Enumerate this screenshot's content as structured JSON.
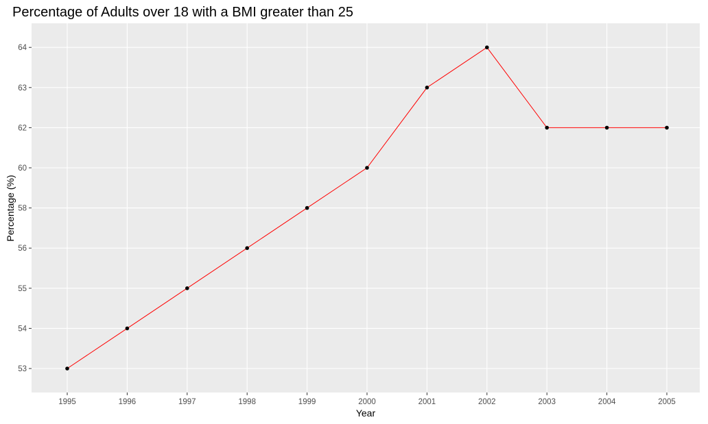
{
  "chart_data": {
    "type": "line",
    "title": "Percentage of Adults over 18 with a BMI greater than 25",
    "xlabel": "Year",
    "ylabel": "Percentage (%)",
    "categories": [
      "1995",
      "1996",
      "1997",
      "1998",
      "1999",
      "2000",
      "2001",
      "2002",
      "2003",
      "2004",
      "2005"
    ],
    "y_tick_labels": [
      "53",
      "54",
      "55",
      "56",
      "58",
      "60",
      "62",
      "63",
      "64"
    ],
    "series": [
      {
        "values": [
          "53",
          "54",
          "55",
          "56",
          "58",
          "60",
          "63",
          "64",
          "62",
          "62",
          "62"
        ]
      }
    ],
    "y_axis_note": "y axis is categorical (discrete, equally spaced levels)",
    "grid": true,
    "legend": "none",
    "colors": {
      "panel_background": "#ebebeb",
      "gridline": "#ffffff",
      "line": "#ff0000",
      "point": "#000000",
      "tick_label": "#4d4d4d",
      "tick_mark": "#333333"
    }
  }
}
